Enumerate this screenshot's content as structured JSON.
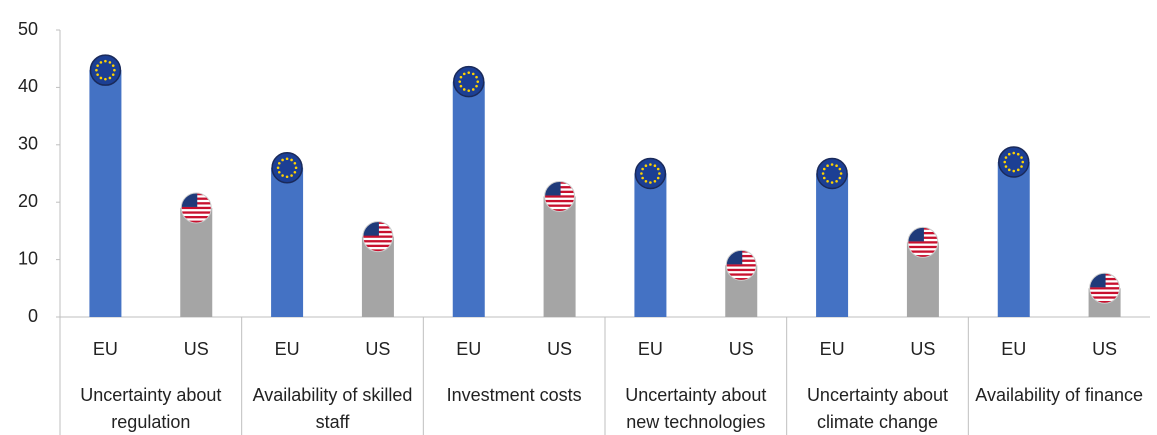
{
  "chart_data": {
    "type": "bar",
    "categories": [
      "Uncertainty about regulation",
      "Availability of skilled staff",
      "Investment costs",
      "Uncertainty about new technologies",
      "Uncertainty about climate change",
      "Availability of finance"
    ],
    "series": [
      {
        "name": "EU",
        "color": "#4472c4",
        "values": [
          43,
          26,
          41,
          25,
          25,
          27
        ]
      },
      {
        "name": "US",
        "color": "#a5a5a5",
        "values": [
          19,
          14,
          21,
          9,
          13,
          5
        ]
      }
    ],
    "ylim": [
      0,
      50
    ],
    "yticks": [
      0,
      10,
      20,
      30,
      40,
      50
    ],
    "grid": false
  }
}
